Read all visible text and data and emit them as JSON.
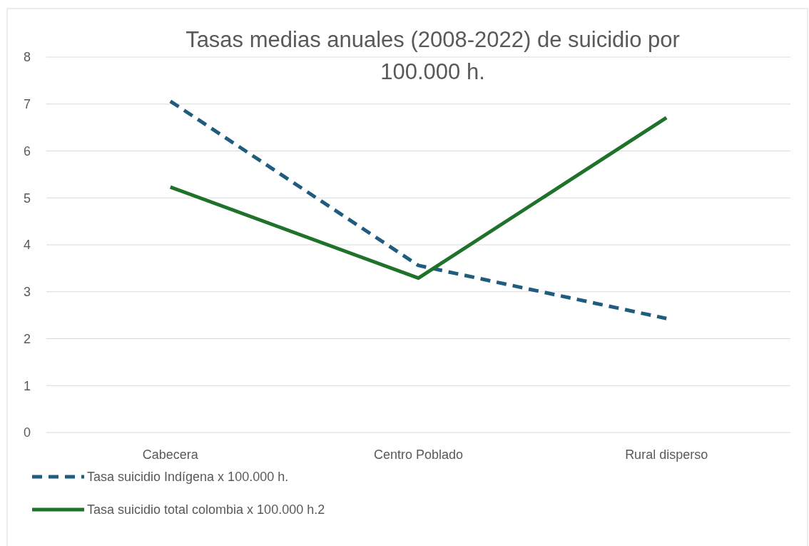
{
  "chart_data": {
    "type": "line",
    "title": "Tasas medias anuales (2008-2022) de suicidio por 100.000 h.",
    "categories": [
      "Cabecera",
      "Centro Poblado",
      "Rural disperso"
    ],
    "series": [
      {
        "name": "Tasa suicidio Indígena x 100.000 h.",
        "color": "#1f5c7e",
        "values": [
          7.06,
          3.56,
          2.43
        ],
        "line_style": "dashed"
      },
      {
        "name": "Tasa suicidio total colombia x 100.000 h.2",
        "color": "#1e7229",
        "values": [
          5.23,
          3.29,
          6.71
        ],
        "line_style": "solid"
      }
    ],
    "ylim": [
      0,
      8
    ],
    "yticks": [
      0,
      1,
      2,
      3,
      4,
      5,
      6,
      7,
      8
    ],
    "grid": "y",
    "legend": "bottom",
    "marker": "none"
  }
}
